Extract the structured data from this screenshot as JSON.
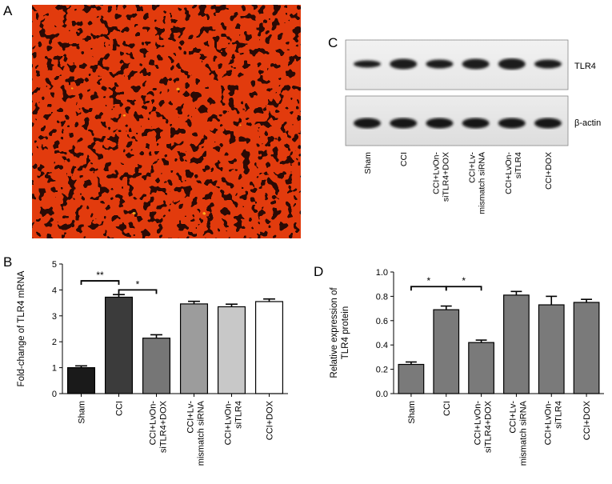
{
  "panels": {
    "a": "A",
    "b": "B",
    "c": "C",
    "d": "D"
  },
  "blot": {
    "rows": [
      "TLR4",
      "β-actin"
    ],
    "lanes": [
      "Sham",
      "CCI",
      "CCI+LvOn-\nsiTLR4+DOX",
      "CCI+Lv-\nmismatch siRNA",
      "CCI+LvOn-\nsiTLR4",
      "CCI+DOX"
    ]
  },
  "chart_data": [
    {
      "type": "bar",
      "panel": "B",
      "categories": [
        "Sham",
        "CCI",
        "CCI+LvOn-\nsiTLR4+DOX",
        "CCI+Lv-\nmismatch siRNA",
        "CCI+LvOn-\nsiTLR4",
        "CCI+DOX"
      ],
      "values": [
        1.0,
        3.72,
        2.14,
        3.46,
        3.35,
        3.55
      ],
      "errors": [
        0.07,
        0.1,
        0.13,
        0.1,
        0.1,
        0.1
      ],
      "colors": [
        "#1a1a1a",
        "#3b3b3b",
        "#767676",
        "#9c9c9c",
        "#c8c8c8",
        "#ffffff"
      ],
      "ylabel": "Fold-change of TLR4 mRNA",
      "ylim": [
        0,
        5
      ],
      "yticks": [
        0,
        1,
        2,
        3,
        4,
        5
      ],
      "significance": [
        {
          "from": 0,
          "to": 1,
          "label": "**",
          "level": 4.35
        },
        {
          "from": 1,
          "to": 2,
          "label": "*",
          "level": 4.0
        }
      ]
    },
    {
      "type": "bar",
      "panel": "D",
      "categories": [
        "Sham",
        "CCI",
        "CCI+LvOn-\nsiTLR4+DOX",
        "CCI+Lv-\nmismatch siRNA",
        "CCI+LvOn-\nsiTLR4",
        "CCI+DOX"
      ],
      "values": [
        0.24,
        0.69,
        0.42,
        0.81,
        0.73,
        0.75
      ],
      "errors": [
        0.02,
        0.03,
        0.02,
        0.03,
        0.07,
        0.025
      ],
      "colors": [
        "#7a7a7a",
        "#7a7a7a",
        "#7a7a7a",
        "#7a7a7a",
        "#7a7a7a",
        "#7a7a7a"
      ],
      "ylabel": "Relative expression of\nTLR4 protein",
      "ylim": [
        0,
        1.0
      ],
      "yticks": [
        0.0,
        0.2,
        0.4,
        0.6,
        0.8,
        1.0
      ],
      "significance": [
        {
          "from": 0,
          "to": 1,
          "label": "*",
          "level": 0.88
        },
        {
          "from": 1,
          "to": 2,
          "label": "*",
          "level": 0.88
        }
      ]
    }
  ]
}
